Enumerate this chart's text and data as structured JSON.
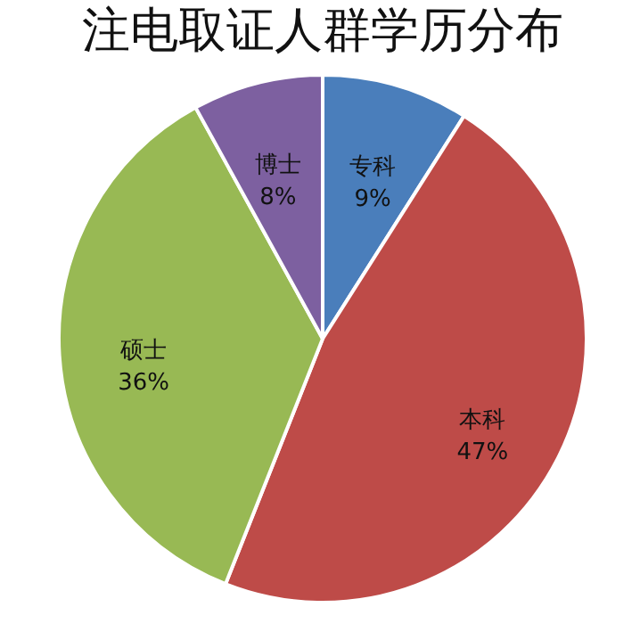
{
  "chart_data": {
    "type": "pie",
    "title": "注电取证人群学历分布",
    "categories": [
      "专科",
      "本科",
      "硕士",
      "博士"
    ],
    "values": [
      9,
      47,
      36,
      8
    ],
    "colors": [
      "#4a7ebb",
      "#be4b48",
      "#98b954",
      "#7d60a0"
    ],
    "value_labels": [
      "9%",
      "47%",
      "36%",
      "8%"
    ],
    "legend": false
  }
}
